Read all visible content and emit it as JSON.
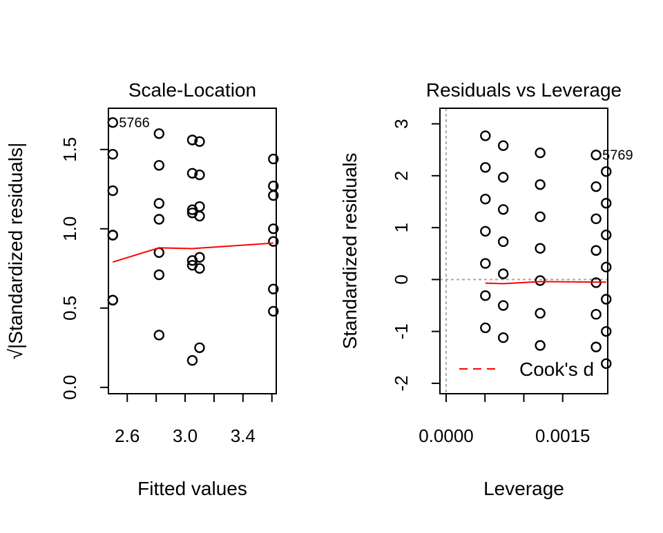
{
  "chart_data": [
    {
      "type": "scatter",
      "title": "Scale-Location",
      "xlabel": "Fitted values",
      "ylabel": "√|Standardized residuals|",
      "xlim": [
        2.47,
        3.63
      ],
      "ylim": [
        -0.04,
        1.76
      ],
      "xticks": [
        "2.6",
        "3.0",
        "3.4"
      ],
      "xtick_values": [
        2.6,
        2.8,
        3.0,
        3.2,
        3.4,
        3.6
      ],
      "yticks": [
        "0.0",
        "0.5",
        "1.0",
        "1.5"
      ],
      "ytick_values": [
        0,
        0.5,
        1.0,
        1.5
      ],
      "points": [
        [
          2.5,
          1.67
        ],
        [
          2.5,
          1.47
        ],
        [
          2.5,
          1.24
        ],
        [
          2.5,
          0.96
        ],
        [
          2.5,
          0.96
        ],
        [
          2.5,
          0.55
        ],
        [
          2.5,
          0.55
        ],
        [
          2.82,
          1.6
        ],
        [
          2.82,
          1.4
        ],
        [
          2.82,
          1.16
        ],
        [
          2.82,
          1.06
        ],
        [
          2.82,
          0.85
        ],
        [
          2.82,
          0.71
        ],
        [
          2.82,
          0.33
        ],
        [
          3.05,
          1.56
        ],
        [
          3.05,
          1.35
        ],
        [
          3.05,
          1.12
        ],
        [
          3.05,
          1.1
        ],
        [
          3.05,
          0.8
        ],
        [
          3.05,
          0.77
        ],
        [
          3.05,
          0.17
        ],
        [
          3.1,
          1.55
        ],
        [
          3.1,
          1.34
        ],
        [
          3.1,
          1.14
        ],
        [
          3.1,
          1.08
        ],
        [
          3.1,
          0.82
        ],
        [
          3.1,
          0.75
        ],
        [
          3.1,
          0.25
        ],
        [
          3.61,
          1.44
        ],
        [
          3.61,
          1.27
        ],
        [
          3.61,
          1.21
        ],
        [
          3.61,
          1.0
        ],
        [
          3.61,
          0.92
        ],
        [
          3.61,
          0.62
        ],
        [
          3.61,
          0.48
        ]
      ],
      "smooth": {
        "color": "#ff0000",
        "x": [
          2.5,
          2.82,
          3.05,
          3.61
        ],
        "y": [
          0.79,
          0.88,
          0.875,
          0.91
        ]
      },
      "point_labels": [
        {
          "text": "5766",
          "x": 2.5,
          "y": 1.67
        }
      ],
      "grid": false
    },
    {
      "type": "scatter",
      "title": "Residuals vs Leverage",
      "xlabel": "Leverage",
      "ylabel": "Standardized residuals",
      "xlim": [
        -8e-05,
        0.00208
      ],
      "ylim": [
        -2.2,
        3.3
      ],
      "xticks": [
        "0.0000",
        "0.0015"
      ],
      "xtick_values": [
        0,
        0.0005,
        0.001,
        0.0015
      ],
      "yticks": [
        "-2",
        "-1",
        "0",
        "1",
        "2",
        "3"
      ],
      "ytick_values": [
        -2,
        -1,
        0,
        1,
        2,
        3
      ],
      "points": [
        [
          0.000505,
          2.77
        ],
        [
          0.000505,
          2.16
        ],
        [
          0.000505,
          1.55
        ],
        [
          0.000505,
          0.93
        ],
        [
          0.000505,
          0.31
        ],
        [
          0.000505,
          -0.31
        ],
        [
          0.000505,
          -0.93
        ],
        [
          0.000735,
          2.58
        ],
        [
          0.000735,
          1.97
        ],
        [
          0.000735,
          1.35
        ],
        [
          0.000735,
          0.73
        ],
        [
          0.000735,
          0.11
        ],
        [
          0.000735,
          -0.5
        ],
        [
          0.000735,
          -1.12
        ],
        [
          0.00121,
          2.44
        ],
        [
          0.00121,
          1.83
        ],
        [
          0.00121,
          1.21
        ],
        [
          0.00121,
          0.6
        ],
        [
          0.00121,
          -0.02
        ],
        [
          0.00121,
          -0.65
        ],
        [
          0.00121,
          -1.27
        ],
        [
          0.00193,
          2.4
        ],
        [
          0.00193,
          1.79
        ],
        [
          0.00193,
          1.17
        ],
        [
          0.00193,
          0.56
        ],
        [
          0.00193,
          -0.06
        ],
        [
          0.00193,
          -0.67
        ],
        [
          0.00193,
          -1.3
        ],
        [
          0.00206,
          2.08
        ],
        [
          0.00206,
          1.47
        ],
        [
          0.00206,
          0.86
        ],
        [
          0.00206,
          0.24
        ],
        [
          0.00206,
          -0.38
        ],
        [
          0.00206,
          -1.0
        ],
        [
          0.00206,
          -1.62
        ]
      ],
      "smooth": {
        "color": "#ff0000",
        "x": [
          0.000505,
          0.000735,
          0.00121,
          0.00193,
          0.00206
        ],
        "y": [
          -0.07,
          -0.08,
          -0.04,
          -0.05,
          -0.05
        ]
      },
      "point_labels": [
        {
          "text": "5769",
          "x": 0.00193,
          "y": 2.4
        }
      ],
      "zero_hline": 0,
      "zero_vline": 0,
      "legend": {
        "label": "Cook's d",
        "color": "#ff0000",
        "style": "dashed",
        "position": "bottom-right"
      },
      "grid": false
    }
  ]
}
